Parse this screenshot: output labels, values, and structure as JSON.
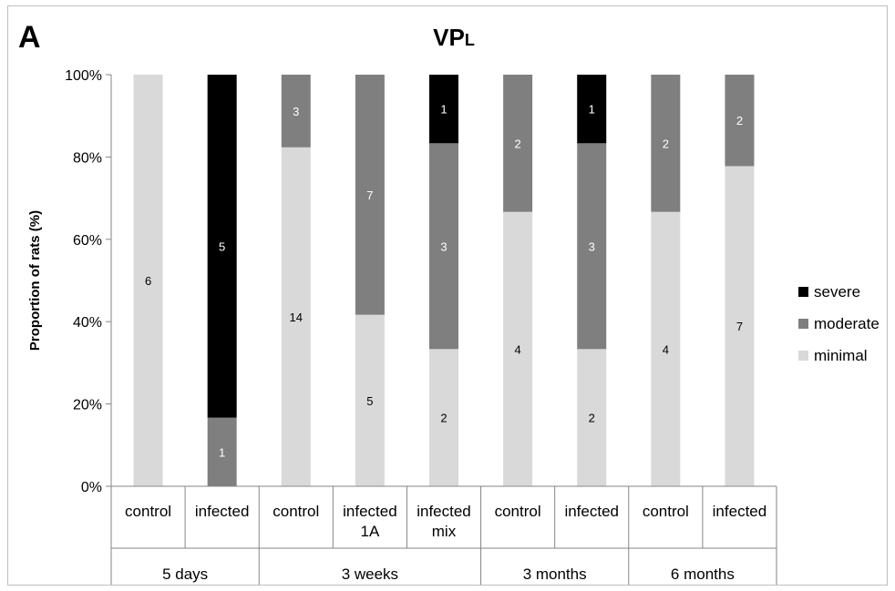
{
  "panel_label": "A",
  "chart_data": {
    "type": "bar",
    "stacked": true,
    "title_main": "VP",
    "title_sub": "L",
    "ylabel": "Proportion of rats (%)",
    "ylim": [
      0,
      100
    ],
    "yticks": [
      "0%",
      "20%",
      "40%",
      "60%",
      "80%",
      "100%"
    ],
    "categories": [
      {
        "label": [
          "control"
        ],
        "group": "5 days"
      },
      {
        "label": [
          "infected"
        ],
        "group": "5 days"
      },
      {
        "label": [
          "control"
        ],
        "group": "3 weeks"
      },
      {
        "label": [
          "infected",
          "1A"
        ],
        "group": "3 weeks"
      },
      {
        "label": [
          "infected",
          "mix"
        ],
        "group": "3 weeks"
      },
      {
        "label": [
          "control"
        ],
        "group": "3 months"
      },
      {
        "label": [
          "infected"
        ],
        "group": "3 months"
      },
      {
        "label": [
          "control"
        ],
        "group": "6 months"
      },
      {
        "label": [
          "infected"
        ],
        "group": "6 months"
      }
    ],
    "groups": [
      {
        "name": "5 days",
        "start": 0,
        "end": 1
      },
      {
        "name": "3 weeks",
        "start": 2,
        "end": 4
      },
      {
        "name": "3 months",
        "start": 5,
        "end": 6
      },
      {
        "name": "6 months",
        "start": 7,
        "end": 8
      }
    ],
    "series": [
      {
        "name": "minimal",
        "color": "#d9d9d9",
        "label_color": "#000000",
        "counts": [
          6,
          0,
          14,
          5,
          2,
          4,
          2,
          4,
          7
        ]
      },
      {
        "name": "moderate",
        "color": "#7f7f7f",
        "label_color": "#ffffff",
        "counts": [
          0,
          1,
          3,
          7,
          3,
          2,
          3,
          2,
          2
        ]
      },
      {
        "name": "severe",
        "color": "#000000",
        "label_color": "#ffffff",
        "counts": [
          0,
          5,
          0,
          0,
          1,
          0,
          1,
          0,
          0
        ]
      }
    ],
    "legend": {
      "placement": "right",
      "order": [
        "severe",
        "moderate",
        "minimal"
      ]
    },
    "grid": false
  }
}
